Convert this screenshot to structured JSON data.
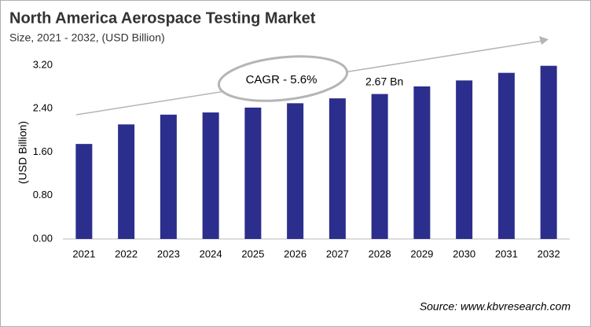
{
  "chart_data": {
    "type": "bar",
    "title": "North America Aerospace Testing Market",
    "subtitle": "Size, 2021 - 2032, (USD Billion)",
    "y_label": "(USD Billion)",
    "categories": [
      "2021",
      "2022",
      "2023",
      "2024",
      "2025",
      "2026",
      "2027",
      "2028",
      "2029",
      "2030",
      "2031",
      "2032"
    ],
    "values": [
      1.75,
      2.11,
      2.29,
      2.33,
      2.42,
      2.5,
      2.59,
      2.67,
      2.81,
      2.92,
      3.06,
      3.19
    ],
    "value_labels": [
      null,
      null,
      null,
      null,
      null,
      null,
      null,
      "2.67 Bn",
      null,
      null,
      null,
      null
    ],
    "color": "#2b2e8c",
    "ylim": [
      0,
      3.2
    ],
    "yticks": [
      {
        "value": 0,
        "label": "0.00"
      },
      {
        "value": 0.8,
        "label": "0.80"
      },
      {
        "value": 1.6,
        "label": "1.60"
      },
      {
        "value": 2.4,
        "label": "2.40"
      },
      {
        "value": 3.2,
        "label": "3.20"
      }
    ],
    "grid": false,
    "cagr_label": "CAGR - 5.6%",
    "source": "Source: www.kbvresearch.com"
  }
}
